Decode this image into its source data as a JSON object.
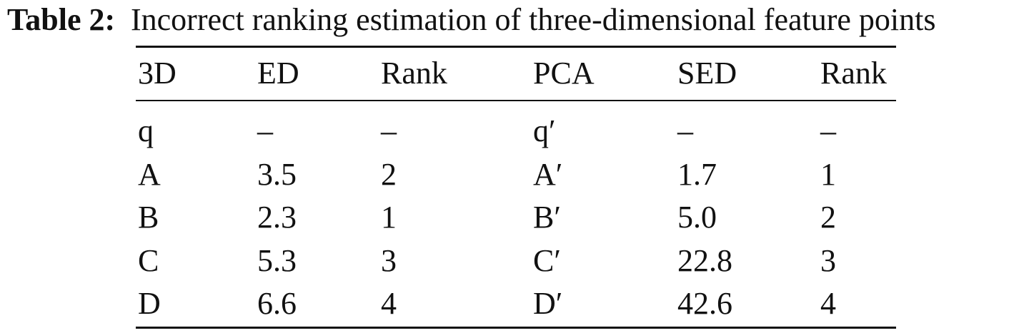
{
  "caption": {
    "label": "Table 2:",
    "text": "Incorrect ranking estimation of three-dimensional feature points"
  },
  "table": {
    "header": [
      "3D",
      "ED",
      "Rank",
      "PCA",
      "SED",
      "Rank"
    ],
    "rows": [
      [
        "q",
        "–",
        "–",
        "q′",
        "–",
        "–"
      ],
      [
        "A",
        "3.5",
        "2",
        "A′",
        "1.7",
        "1"
      ],
      [
        "B",
        "2.3",
        "1",
        "B′",
        "5.0",
        "2"
      ],
      [
        "C",
        "5.3",
        "3",
        "C′",
        "22.8",
        "3"
      ],
      [
        "D",
        "6.6",
        "4",
        "D′",
        "42.6",
        "4"
      ]
    ]
  }
}
